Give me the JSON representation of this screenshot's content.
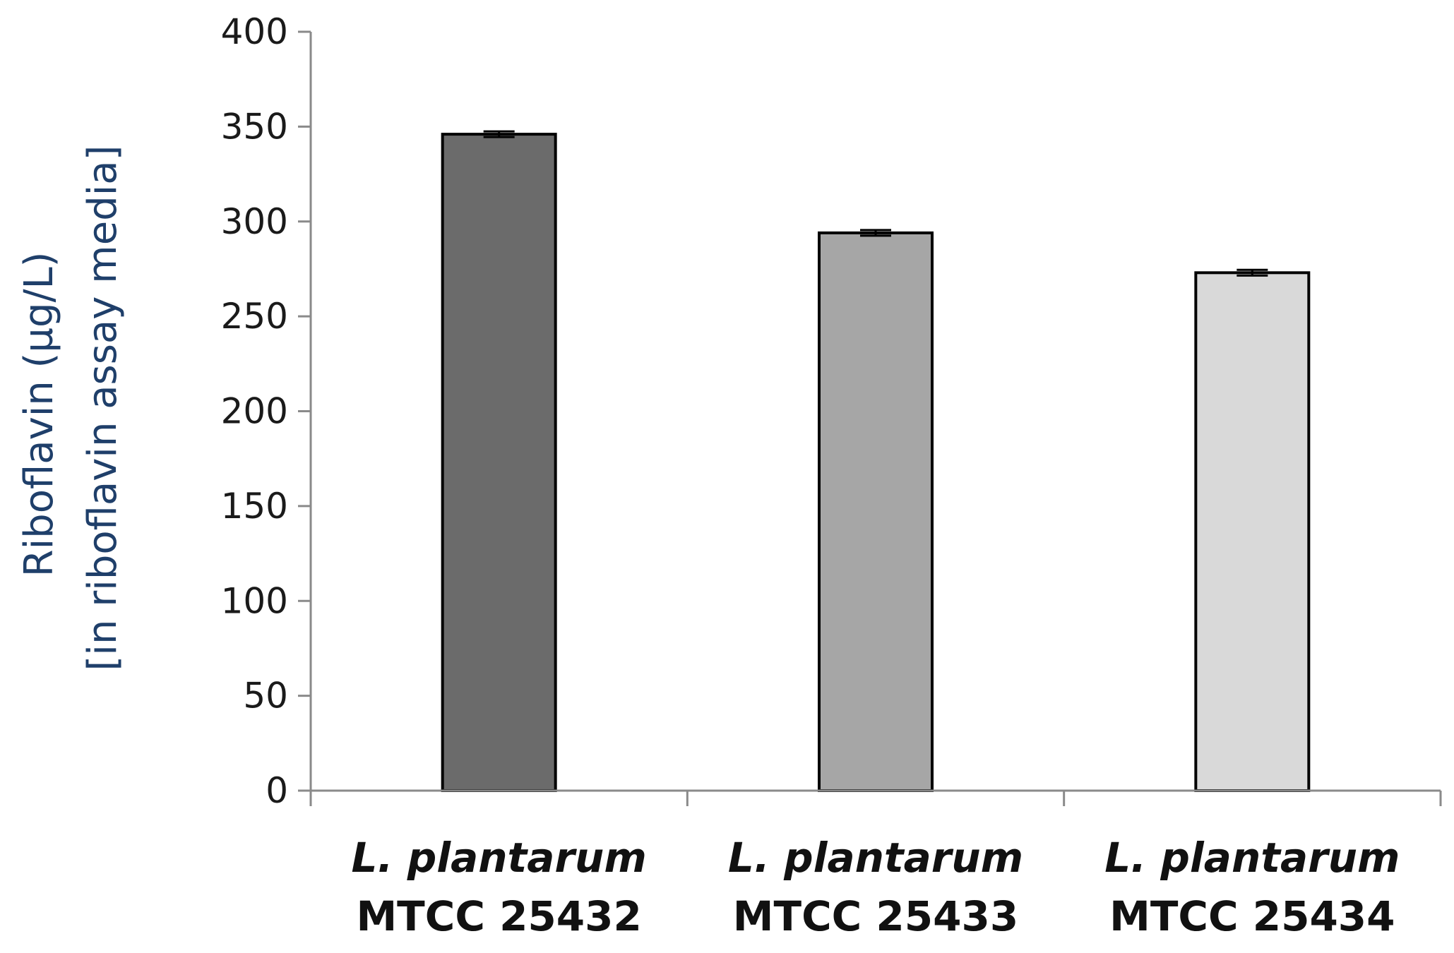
{
  "chart_data": {
    "type": "bar",
    "categories": [
      {
        "species": "L. plantarum",
        "strain": "MTCC 25432"
      },
      {
        "species": "L. plantarum",
        "strain": "MTCC 25433"
      },
      {
        "species": "L. plantarum",
        "strain": "MTCC 25434"
      }
    ],
    "values": [
      346,
      294,
      273
    ],
    "errors": [
      1.5,
      1.5,
      1.5
    ],
    "bar_colors": [
      "#6b6b6b",
      "#a6a6a6",
      "#d9d9d9"
    ],
    "ylabel_line1": "Riboflavin (µg/L)",
    "ylabel_line2": "[in riboflavin assay media]",
    "xlabel": "",
    "title": "",
    "ylim": [
      0,
      400
    ],
    "yticks": [
      "0",
      "50",
      "100",
      "150",
      "200",
      "250",
      "300",
      "350",
      "400"
    ],
    "grid": false,
    "legend": "none"
  }
}
